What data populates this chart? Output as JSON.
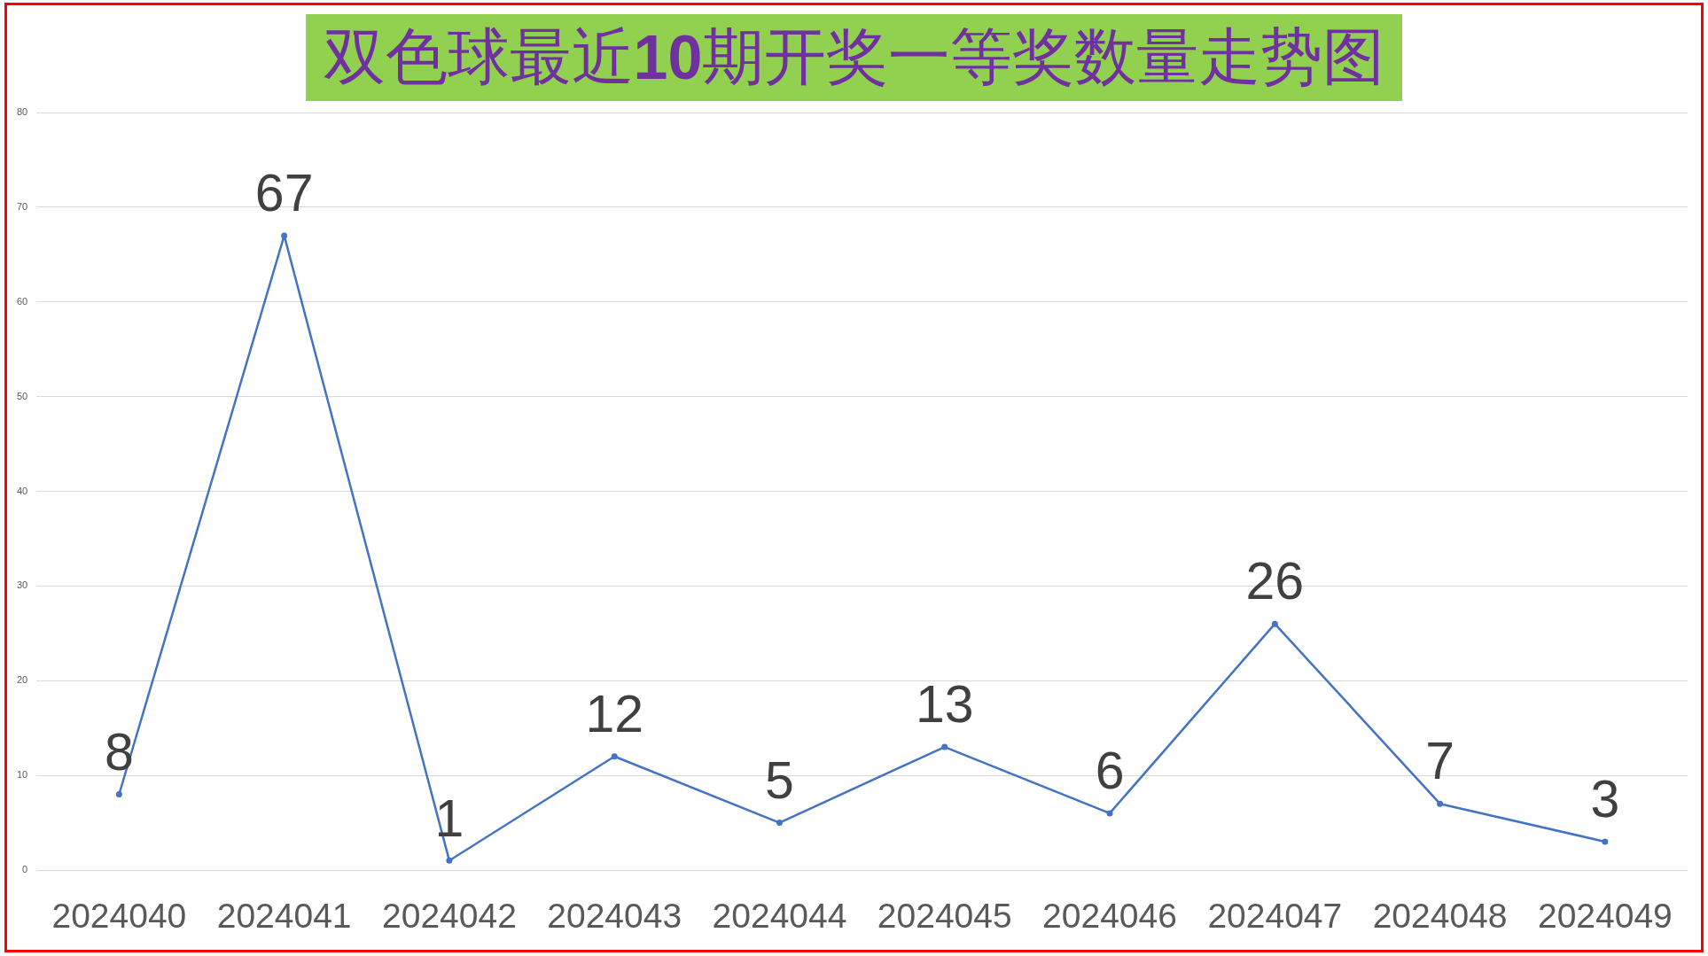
{
  "chart_data": {
    "type": "line",
    "title": "双色球最近10期开奖一等奖数量走势图",
    "categories": [
      "2024040",
      "2024041",
      "2024042",
      "2024043",
      "2024044",
      "2024045",
      "2024046",
      "2024047",
      "2024048",
      "2024049"
    ],
    "series": [
      {
        "color": "#4472c4",
        "values": [
          8,
          67,
          1,
          12,
          5,
          13,
          6,
          26,
          7,
          3
        ]
      }
    ],
    "ylim": [
      0,
      80
    ],
    "yticks": [
      0,
      10,
      20,
      30,
      40,
      50,
      60,
      70,
      80
    ],
    "grid": "y",
    "marker": "circle",
    "line_style": "solid",
    "data_labels": true
  }
}
